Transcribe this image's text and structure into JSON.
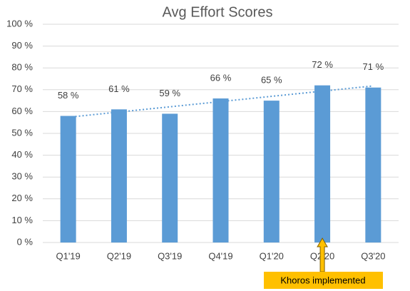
{
  "chart_data": {
    "type": "bar",
    "title": "Avg Effort Scores",
    "categories": [
      "Q1'19",
      "Q2'19",
      "Q3'19",
      "Q4'19",
      "Q1'20",
      "Q2'20",
      "Q3'20"
    ],
    "values": [
      58,
      61,
      59,
      66,
      65,
      72,
      71
    ],
    "value_labels": [
      "58 %",
      "61 %",
      "59 %",
      "66 %",
      "65 %",
      "72 %",
      "71 %"
    ],
    "color": "#5b9bd5",
    "trendline": true,
    "ylim": [
      0,
      100
    ],
    "yticks": [
      {
        "value": 0,
        "label": "0 %"
      },
      {
        "value": 10,
        "label": "10 %"
      },
      {
        "value": 20,
        "label": "20 %"
      },
      {
        "value": 30,
        "label": "30 %"
      },
      {
        "value": 40,
        "label": "40 %"
      },
      {
        "value": 50,
        "label": "50 %"
      },
      {
        "value": 60,
        "label": "60 %"
      },
      {
        "value": 70,
        "label": "70 %"
      },
      {
        "value": 80,
        "label": "80 %"
      },
      {
        "value": 90,
        "label": "90 %"
      },
      {
        "value": 100,
        "label": "100 %"
      }
    ],
    "grid": true,
    "annotation": {
      "text": "Khoros implemented",
      "category": "Q2'20",
      "color": "#ffc000"
    }
  }
}
